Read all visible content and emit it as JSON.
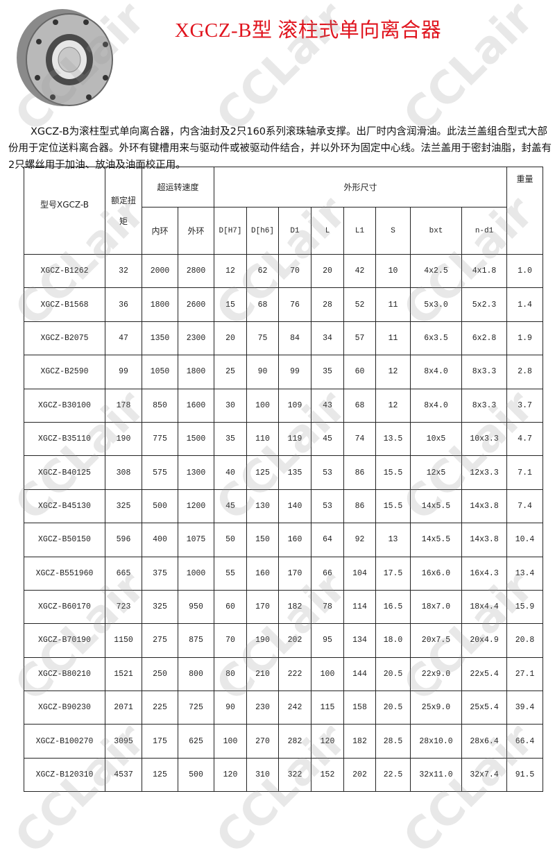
{
  "title": "XGCZ-B型 滚柱式单向离合器",
  "intro": "XGCZ-B为滚柱型式单向离合器，内含油封及2只160系列滚珠轴承支撑。出厂时内含润滑油。此法兰盖组合型式大部份用于定位送料离合器。外环有键槽用来与驱动件或被驱动件结合，并以外环为固定中心线。法兰盖用于密封油脂，封盖有2只螺丝用于加油、放油及油面校正用。",
  "watermark": "CCLair",
  "table": {
    "header": {
      "model": "型号XGCZ-B",
      "torque": "额定扭矩",
      "overrun_speed": "超运转速度",
      "inner": "内环",
      "outer": "外环",
      "dims": "外形尺寸",
      "weight": "重量",
      "dim_cols": [
        "D[H7]",
        "D[h6]",
        "D1",
        "L",
        "L1",
        "S",
        "bxt",
        "n-d1"
      ]
    },
    "rows": [
      [
        "XGCZ-B1262",
        "32",
        "2000",
        "2800",
        "12",
        "62",
        "70",
        "20",
        "42",
        "10",
        "4x2.5",
        "4x1.8",
        "1.0"
      ],
      [
        "XGCZ-B1568",
        "36",
        "1800",
        "2600",
        "15",
        "68",
        "76",
        "28",
        "52",
        "11",
        "5x3.0",
        "5x2.3",
        "1.4"
      ],
      [
        "XGCZ-B2075",
        "47",
        "1350",
        "2300",
        "20",
        "75",
        "84",
        "34",
        "57",
        "11",
        "6x3.5",
        "6x2.8",
        "1.9"
      ],
      [
        "XGCZ-B2590",
        "99",
        "1050",
        "1800",
        "25",
        "90",
        "99",
        "35",
        "60",
        "12",
        "8x4.0",
        "8x3.3",
        "2.8"
      ],
      [
        "XGCZ-B30100",
        "178",
        "850",
        "1600",
        "30",
        "100",
        "109",
        "43",
        "68",
        "12",
        "8x4.0",
        "8x3.3",
        "3.7"
      ],
      [
        "XGCZ-B35110",
        "190",
        "775",
        "1500",
        "35",
        "110",
        "119",
        "45",
        "74",
        "13.5",
        "10x5",
        "10x3.3",
        "4.7"
      ],
      [
        "XGCZ-B40125",
        "308",
        "575",
        "1300",
        "40",
        "125",
        "135",
        "53",
        "86",
        "15.5",
        "12x5",
        "12x3.3",
        "7.1"
      ],
      [
        "XGCZ-B45130",
        "325",
        "500",
        "1200",
        "45",
        "130",
        "140",
        "53",
        "86",
        "15.5",
        "14x5.5",
        "14x3.8",
        "7.4"
      ],
      [
        "XGCZ-B50150",
        "596",
        "400",
        "1075",
        "50",
        "150",
        "160",
        "64",
        "92",
        "13",
        "14x5.5",
        "14x3.8",
        "10.4"
      ],
      [
        "XGCZ-B551960",
        "665",
        "375",
        "1000",
        "55",
        "160",
        "170",
        "66",
        "104",
        "17.5",
        "16x6.0",
        "16x4.3",
        "13.4"
      ],
      [
        "XGCZ-B60170",
        "723",
        "325",
        "950",
        "60",
        "170",
        "182",
        "78",
        "114",
        "16.5",
        "18x7.0",
        "18x4.4",
        "15.9"
      ],
      [
        "XGCZ-B70190",
        "1150",
        "275",
        "875",
        "70",
        "190",
        "202",
        "95",
        "134",
        "18.0",
        "20x7.5",
        "20x4.9",
        "20.8"
      ],
      [
        "XGCZ-B80210",
        "1521",
        "250",
        "800",
        "80",
        "210",
        "222",
        "100",
        "144",
        "20.5",
        "22x9.0",
        "22x5.4",
        "27.1"
      ],
      [
        "XGCZ-B90230",
        "2071",
        "225",
        "725",
        "90",
        "230",
        "242",
        "115",
        "158",
        "20.5",
        "25x9.0",
        "25x5.4",
        "39.4"
      ],
      [
        "XGCZ-B100270",
        "3095",
        "175",
        "625",
        "100",
        "270",
        "282",
        "120",
        "182",
        "28.5",
        "28x10.0",
        "28x6.4",
        "66.4"
      ],
      [
        "XGCZ-B120310",
        "4537",
        "125",
        "500",
        "120",
        "310",
        "322",
        "152",
        "202",
        "22.5",
        "32x11.0",
        "32x7.4",
        "91.5"
      ]
    ]
  }
}
